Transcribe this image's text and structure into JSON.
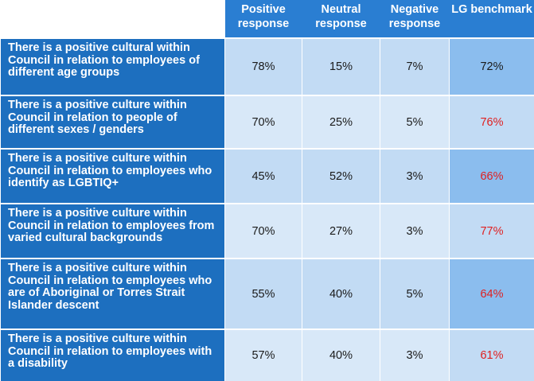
{
  "headers": {
    "positive": "Positive response",
    "neutral": "Neutral response",
    "negative": "Negative response",
    "benchmark": "LG benchmark"
  },
  "rows": [
    {
      "label": "There is a positive cultural within Council in relation to employees of different age groups",
      "positive": "78%",
      "neutral": "15%",
      "negative": "7%",
      "benchmark": "72%"
    },
    {
      "label": "There is a positive culture within Council in relation to people of different sexes / genders",
      "positive": "70%",
      "neutral": "25%",
      "negative": "5%",
      "benchmark": "76%"
    },
    {
      "label": "There is a positive culture within Council in relation to employees who identify as LGBTIQ+",
      "positive": "45%",
      "neutral": "52%",
      "negative": "3%",
      "benchmark": "66%"
    },
    {
      "label": "There is a positive culture within Council in relation to employees from varied cultural backgrounds",
      "positive": "70%",
      "neutral": "27%",
      "negative": "3%",
      "benchmark": "77%"
    },
    {
      "label": "There is a positive culture within Council in relation to employees who are of Aboriginal or Torres Strait Islander descent",
      "positive": "55%",
      "neutral": "40%",
      "negative": "5%",
      "benchmark": "64%"
    },
    {
      "label": "There is a positive culture within Council in relation to employees with a disability",
      "positive": "57%",
      "neutral": "40%",
      "negative": "3%",
      "benchmark": "61%"
    }
  ],
  "colors": {
    "header_bg": "#2a7ed2",
    "row_label_bg": "#1d6fbf",
    "cell_light": "#c2dbf4",
    "cell_lighter": "#d8e8f8",
    "benchmark_dark": "#8bbdee",
    "below_benchmark_text": "#e02020"
  }
}
